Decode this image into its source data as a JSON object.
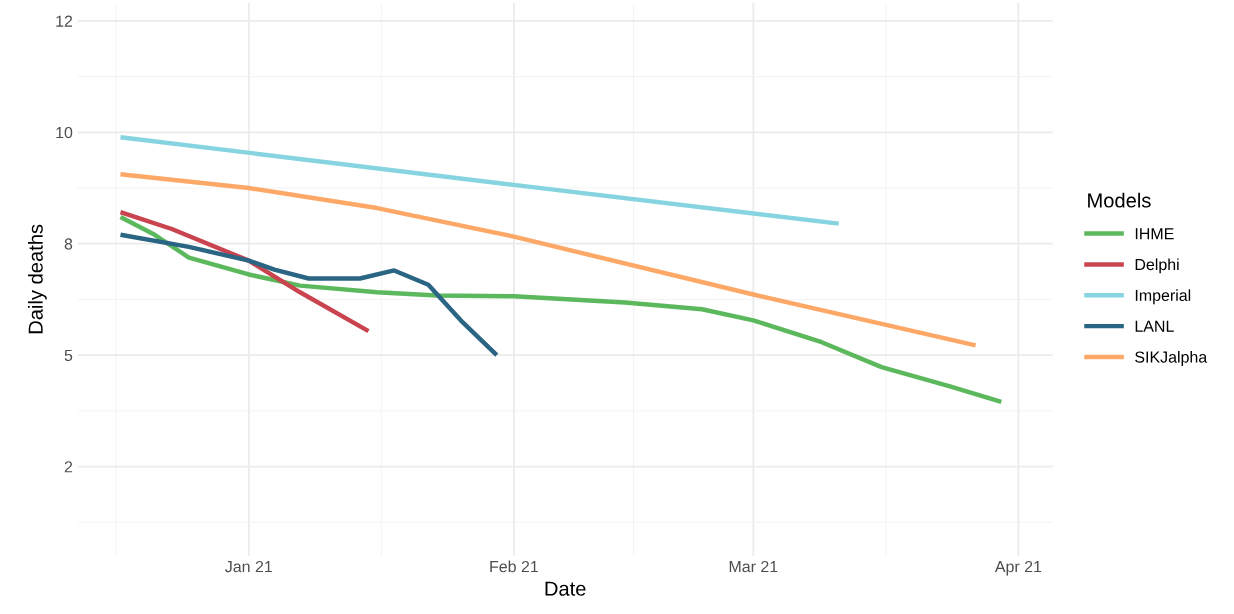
{
  "chart_data": {
    "type": "line",
    "xlabel": "Date",
    "ylabel": "Daily deaths",
    "legend_title": "Models",
    "legend": "right",
    "grid": true,
    "line_style": "solid",
    "marker": "none",
    "xlim": [
      "2020-12-12",
      "2021-04-05"
    ],
    "xticks": [
      {
        "value": "2021-01-01",
        "label": "Jan 21"
      },
      {
        "value": "2021-02-01",
        "label": "Feb 21"
      },
      {
        "value": "2021-03-01",
        "label": "Mar 21"
      },
      {
        "value": "2021-04-01",
        "label": "Apr 21"
      }
    ],
    "ylim": [
      0.5,
      12.9
    ],
    "yticks": [
      {
        "value": 2.5,
        "label": "2"
      },
      {
        "value": 5,
        "label": "5"
      },
      {
        "value": 7.5,
        "label": "8"
      },
      {
        "value": 10,
        "label": "10"
      },
      {
        "value": 12.5,
        "label": "12"
      }
    ],
    "series": [
      {
        "name": "IHME",
        "color": "#5cb85c",
        "x": [
          "2020-12-17",
          "2020-12-21",
          "2020-12-25",
          "2021-01-01",
          "2021-01-07",
          "2021-01-16",
          "2021-01-23",
          "2021-02-01",
          "2021-02-14",
          "2021-02-23",
          "2021-03-01",
          "2021-03-09",
          "2021-03-16",
          "2021-03-24",
          "2021-03-30"
        ],
        "values": [
          8.1,
          7.7,
          7.19,
          6.81,
          6.56,
          6.41,
          6.34,
          6.32,
          6.18,
          6.03,
          5.78,
          5.29,
          4.73,
          4.3,
          3.95
        ]
      },
      {
        "name": "Delphi",
        "color": "#c9444f",
        "x": [
          "2020-12-17",
          "2020-12-23",
          "2021-01-01",
          "2021-01-07",
          "2021-01-15"
        ],
        "values": [
          8.21,
          7.83,
          7.12,
          6.41,
          5.54
        ]
      },
      {
        "name": "Imperial",
        "color": "#85d4e0",
        "x": [
          "2020-12-17",
          "2021-02-01",
          "2021-03-11"
        ],
        "values": [
          9.89,
          8.82,
          7.95
        ]
      },
      {
        "name": "LANL",
        "color": "#2a6584",
        "x": [
          "2020-12-17",
          "2020-12-25",
          "2021-01-01",
          "2021-01-04",
          "2021-01-08",
          "2021-01-14",
          "2021-01-18",
          "2021-01-22",
          "2021-01-26",
          "2021-01-30"
        ],
        "values": [
          7.7,
          7.43,
          7.12,
          6.92,
          6.72,
          6.72,
          6.9,
          6.58,
          5.74,
          5.0
        ]
      },
      {
        "name": "SIKJalpha",
        "color": "#fda867",
        "x": [
          "2020-12-17",
          "2021-01-01",
          "2021-01-16",
          "2021-02-01",
          "2021-03-01",
          "2021-03-27"
        ],
        "values": [
          9.06,
          8.75,
          8.3,
          7.66,
          6.36,
          5.22
        ]
      }
    ]
  }
}
